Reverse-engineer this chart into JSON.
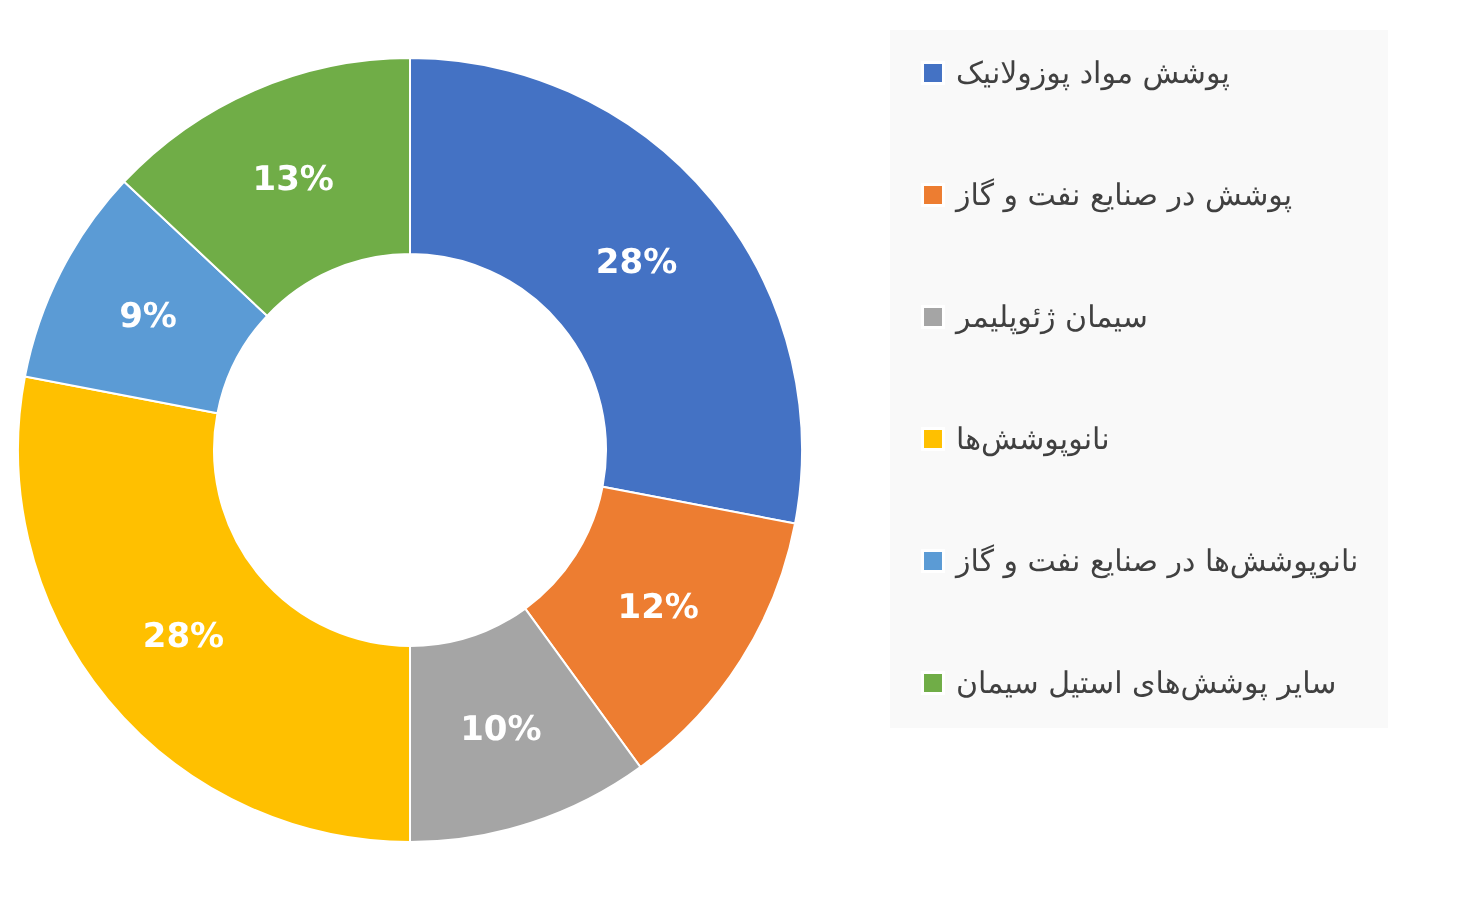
{
  "chart_data": {
    "type": "donut",
    "categories": [
      "پوشش مواد پوزولانیک",
      "پوشش در صنایع نفت و گاز",
      "سیمان ژئوپلیمر",
      "نانوپوشش‌ها",
      "نانوپوشش‌ها در صنایع نفت و گاز",
      "سایر پوشش‌های استیل سیمان"
    ],
    "values": [
      28,
      12,
      10,
      28,
      9,
      13
    ],
    "colors": [
      "#4472c4",
      "#ed7d31",
      "#a5a5a5",
      "#ffc000",
      "#5b9bd5",
      "#70ad47"
    ],
    "value_labels": [
      "28%",
      "12%",
      "10%",
      "28%",
      "9%",
      "13%"
    ],
    "legend": "right"
  }
}
